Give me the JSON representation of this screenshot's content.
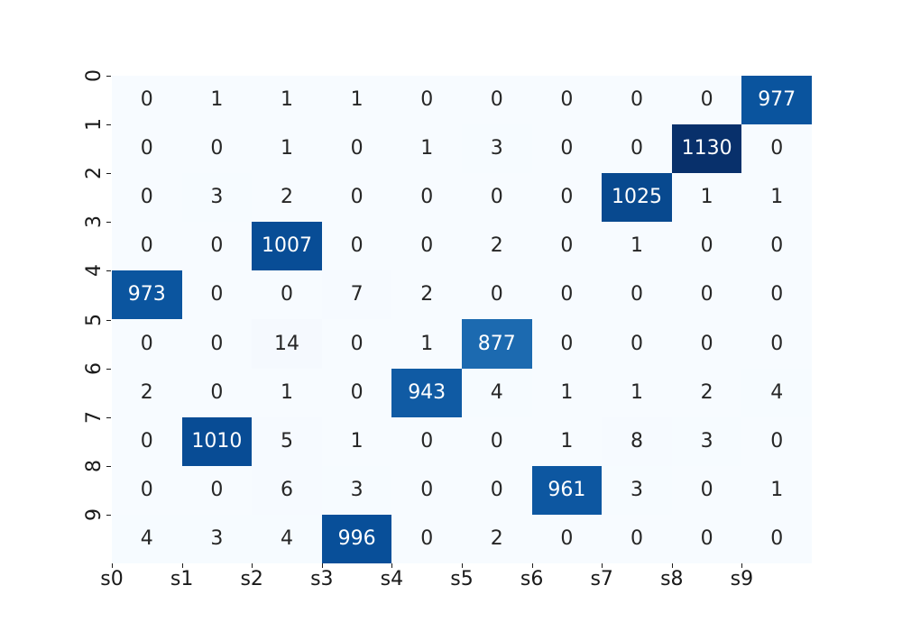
{
  "figure": {
    "background": "#ffffff"
  },
  "chart_data": {
    "type": "heatmap",
    "title": "",
    "xlabel": "",
    "ylabel": "",
    "x_tick_labels": [
      "s0",
      "s1",
      "s2",
      "s3",
      "s4",
      "s5",
      "s6",
      "s7",
      "s8",
      "s9"
    ],
    "y_tick_labels": [
      "0",
      "1",
      "2",
      "3",
      "4",
      "5",
      "6",
      "7",
      "8",
      "9"
    ],
    "matrix": [
      [
        0,
        1,
        1,
        1,
        0,
        0,
        0,
        0,
        0,
        977
      ],
      [
        0,
        0,
        1,
        0,
        1,
        3,
        0,
        0,
        1130,
        0
      ],
      [
        0,
        3,
        2,
        0,
        0,
        0,
        0,
        1025,
        1,
        1
      ],
      [
        0,
        0,
        1007,
        0,
        0,
        2,
        0,
        1,
        0,
        0
      ],
      [
        973,
        0,
        0,
        7,
        2,
        0,
        0,
        0,
        0,
        0
      ],
      [
        0,
        0,
        14,
        0,
        1,
        877,
        0,
        0,
        0,
        0
      ],
      [
        2,
        0,
        1,
        0,
        943,
        4,
        1,
        1,
        2,
        4
      ],
      [
        0,
        1010,
        5,
        1,
        0,
        0,
        1,
        8,
        3,
        0
      ],
      [
        0,
        0,
        6,
        3,
        0,
        0,
        961,
        3,
        0,
        1
      ],
      [
        4,
        3,
        4,
        996,
        0,
        2,
        0,
        0,
        0,
        0
      ]
    ],
    "vmin": 0,
    "vmax": 1130,
    "colormap": {
      "name": "Blues",
      "stops": [
        "#f7fbff",
        "#deebf7",
        "#c6dbef",
        "#9ecae1",
        "#6baed6",
        "#4292c6",
        "#2171b5",
        "#08519c",
        "#08306b"
      ]
    },
    "annotation_colors": {
      "on_dark": "#ffffff",
      "on_light": "#262626"
    },
    "axis": {
      "tick_color": "#1a1a1a",
      "grid": false,
      "legend": "none",
      "spines": false
    }
  }
}
